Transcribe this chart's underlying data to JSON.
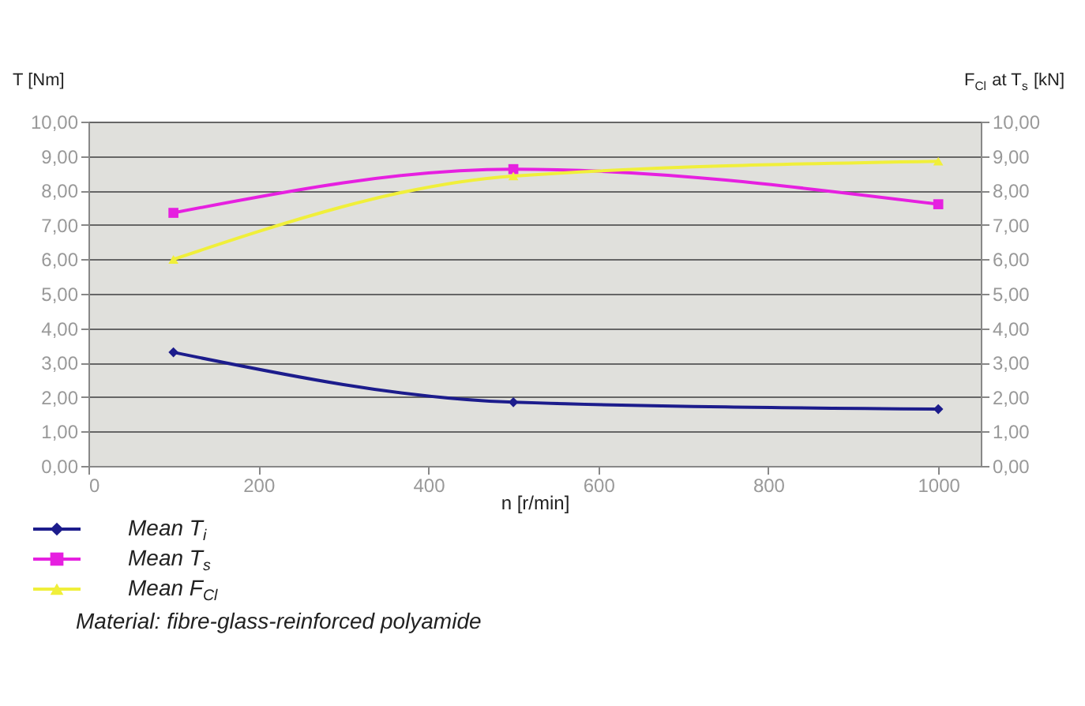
{
  "chart_data": {
    "type": "line",
    "xlabel": "n [r/min]",
    "ylabel": "T [Nm]",
    "y2label": "F$_{Cl}$ at T$_{s}$ [kN]",
    "x": [
      100,
      500,
      1000
    ],
    "series": [
      {
        "name": "Mean T$_{i}$",
        "color": "#1c1c8c",
        "values": [
          3.3,
          1.85,
          1.65
        ],
        "marker": "diamond"
      },
      {
        "name": "Mean T$_{s}$",
        "color": "#e620e0",
        "values": [
          7.35,
          8.62,
          7.6
        ],
        "marker": "square"
      },
      {
        "name": "Mean F$_{Cl}$",
        "color": "#f0ef3a",
        "values": [
          6.0,
          8.42,
          8.85
        ],
        "marker": "triangle",
        "axis": "y2"
      }
    ],
    "xlim": [
      0,
      1050
    ],
    "xticks": [
      0,
      200,
      400,
      600,
      800,
      1000
    ],
    "ylim": [
      0,
      10
    ],
    "yticks": [
      {
        "value": 0,
        "label": "0,00"
      },
      {
        "value": 1,
        "label": "1,00"
      },
      {
        "value": 2,
        "label": "2,00"
      },
      {
        "value": 3,
        "label": "3,00"
      },
      {
        "value": 4,
        "label": "4,00"
      },
      {
        "value": 5,
        "label": "5,00"
      },
      {
        "value": 6,
        "label": "6,00"
      },
      {
        "value": 7,
        "label": "7,00"
      },
      {
        "value": 8,
        "label": "8,00"
      },
      {
        "value": 9,
        "label": "9,00"
      },
      {
        "value": 10,
        "label": "10,00"
      }
    ],
    "y2lim": [
      0,
      10
    ],
    "y2ticks": [
      {
        "value": 0,
        "label": "0,00"
      },
      {
        "value": 1,
        "label": "1,00"
      },
      {
        "value": 2,
        "label": "2,00"
      },
      {
        "value": 3,
        "label": "3,00"
      },
      {
        "value": 4,
        "label": "4,00"
      },
      {
        "value": 5,
        "label": "5,00"
      },
      {
        "value": 6,
        "label": "6,00"
      },
      {
        "value": 7,
        "label": "7,00"
      },
      {
        "value": 8,
        "label": "8,00"
      },
      {
        "value": 9,
        "label": "9,00"
      },
      {
        "value": 10,
        "label": "10,00"
      }
    ],
    "grid": "y",
    "legend": "bottom left",
    "line_style": "solid",
    "annotations": [
      "Material: fibre-glass-reinforced polyamide"
    ]
  }
}
